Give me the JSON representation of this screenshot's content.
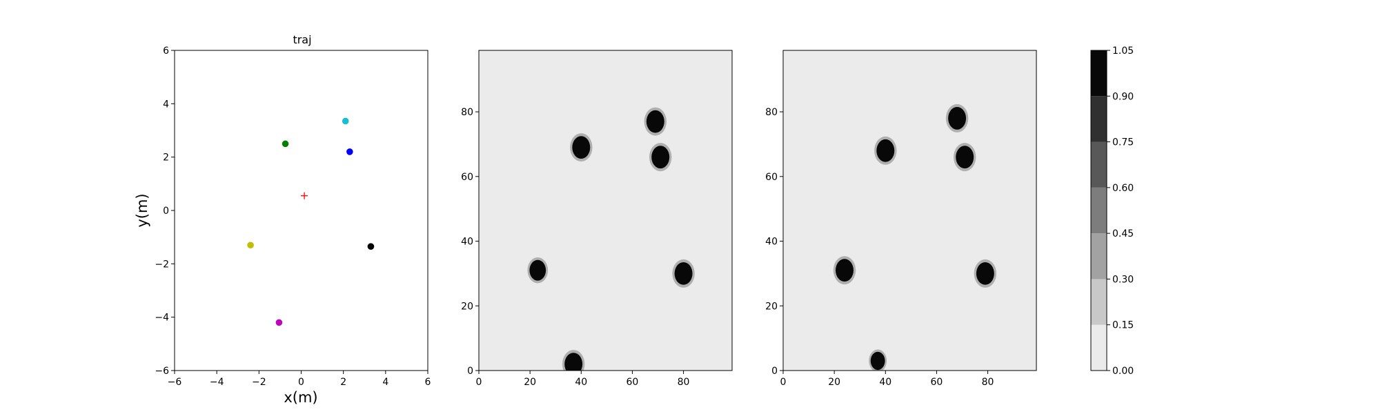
{
  "chart_data": [
    {
      "type": "scatter",
      "title": "traj",
      "xlabel": "x(m)",
      "ylabel": "y(m)",
      "xlim": [
        -6,
        6
      ],
      "ylim": [
        -6,
        6
      ],
      "xticks": [
        "−6",
        "−4",
        "−2",
        "0",
        "2",
        "4",
        "6"
      ],
      "yticks": [
        "−6",
        "−4",
        "−2",
        "0",
        "2",
        "4",
        "6"
      ],
      "grid": false,
      "points": [
        {
          "x": 2.1,
          "y": 3.35,
          "color": "#17becf",
          "marker": "circle"
        },
        {
          "x": -0.75,
          "y": 2.5,
          "color": "#008000",
          "marker": "circle"
        },
        {
          "x": 2.3,
          "y": 2.2,
          "color": "#0000ff",
          "marker": "circle"
        },
        {
          "x": 0.15,
          "y": 0.55,
          "color": "#ff0000",
          "marker": "plus"
        },
        {
          "x": -2.4,
          "y": -1.3,
          "color": "#bfbf00",
          "marker": "circle"
        },
        {
          "x": 3.3,
          "y": -1.35,
          "color": "#000000",
          "marker": "circle"
        },
        {
          "x": -1.05,
          "y": -4.2,
          "color": "#bf00bf",
          "marker": "circle"
        }
      ]
    },
    {
      "type": "heatmap",
      "xlim": [
        0,
        99
      ],
      "ylim": [
        0,
        99
      ],
      "xticks": [
        "0",
        "20",
        "40",
        "60",
        "80"
      ],
      "yticks": [
        "0",
        "20",
        "40",
        "60",
        "80"
      ],
      "background_value": 0.0,
      "blobs": [
        {
          "x": 69,
          "y": 77,
          "r": 3.5,
          "value": 1.0
        },
        {
          "x": 40,
          "y": 69,
          "r": 3.5,
          "value": 1.0
        },
        {
          "x": 71,
          "y": 66,
          "r": 3.5,
          "value": 1.0
        },
        {
          "x": 23,
          "y": 31,
          "r": 3.2,
          "value": 1.0
        },
        {
          "x": 80,
          "y": 30,
          "r": 3.5,
          "value": 1.0
        },
        {
          "x": 37,
          "y": 2,
          "r": 3.5,
          "value": 1.0
        }
      ]
    },
    {
      "type": "heatmap",
      "xlim": [
        0,
        99
      ],
      "ylim": [
        0,
        99
      ],
      "xticks": [
        "0",
        "20",
        "40",
        "60",
        "80"
      ],
      "yticks": [
        "0",
        "20",
        "40",
        "60",
        "80"
      ],
      "background_value": 0.0,
      "blobs": [
        {
          "x": 68,
          "y": 78,
          "r": 3.5,
          "value": 1.0
        },
        {
          "x": 40,
          "y": 68,
          "r": 3.5,
          "value": 1.0
        },
        {
          "x": 71,
          "y": 66,
          "r": 3.5,
          "value": 1.0
        },
        {
          "x": 24,
          "y": 31,
          "r": 3.5,
          "value": 1.0
        },
        {
          "x": 79,
          "y": 30,
          "r": 3.5,
          "value": 1.0
        },
        {
          "x": 37,
          "y": 3,
          "r": 2.8,
          "value": 1.0
        }
      ]
    }
  ],
  "colorbar": {
    "levels": [
      "0.00",
      "0.15",
      "0.30",
      "0.45",
      "0.60",
      "0.75",
      "0.90",
      "1.05"
    ],
    "colors": [
      "#ebebeb",
      "#c8c8c8",
      "#a2a2a2",
      "#7d7d7d",
      "#585858",
      "#303030",
      "#080808"
    ]
  }
}
